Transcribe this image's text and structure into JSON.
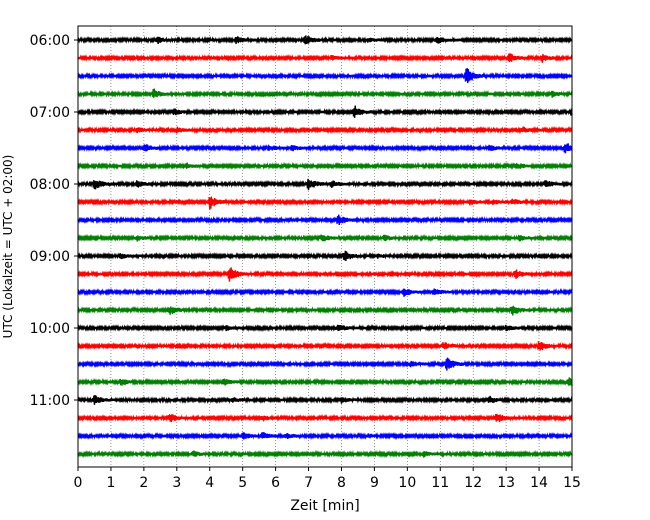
{
  "chart_data": {
    "type": "line",
    "title": "",
    "xlabel": "Zeit  [min]",
    "ylabel": "UTC (Lokalzeit = UTC + 02:00)",
    "xlim": [
      0,
      15
    ],
    "x_ticks": [
      0,
      1,
      2,
      3,
      4,
      5,
      6,
      7,
      8,
      9,
      10,
      11,
      12,
      13,
      14,
      15
    ],
    "x_grid": true,
    "y_ticks": [
      "06:00",
      "07:00",
      "08:00",
      "09:00",
      "10:00",
      "11:00"
    ],
    "trace_interval_min": 15,
    "trace_colors": [
      "#000000",
      "#ff0000",
      "#0000ff",
      "#008000"
    ],
    "series": [
      {
        "start": "06:00",
        "events": [
          [
            2.4,
            0.4
          ],
          [
            4.8,
            0.4
          ],
          [
            6.9,
            0.6
          ],
          [
            8.8,
            0.2
          ],
          [
            10.9,
            0.4
          ]
        ]
      },
      {
        "start": "06:15",
        "events": [
          [
            7.7,
            0.25
          ],
          [
            13.1,
            0.5
          ],
          [
            14.1,
            0.45
          ]
        ]
      },
      {
        "start": "06:30",
        "events": [
          [
            11.8,
            1.0
          ]
        ]
      },
      {
        "start": "06:45",
        "events": [
          [
            2.3,
            0.6
          ],
          [
            14.4,
            0.3
          ]
        ]
      },
      {
        "start": "07:00",
        "events": [
          [
            2.9,
            0.4
          ],
          [
            8.4,
            0.7
          ],
          [
            15.0,
            0.5
          ]
        ]
      },
      {
        "start": "07:15",
        "events": [
          [
            1.8,
            0.3
          ],
          [
            3.0,
            0.3
          ],
          [
            13.5,
            0.3
          ]
        ]
      },
      {
        "start": "07:30",
        "events": [
          [
            2.0,
            0.5
          ],
          [
            5.8,
            0.3
          ],
          [
            6.5,
            0.3
          ],
          [
            12.5,
            0.3
          ],
          [
            14.8,
            0.7
          ]
        ]
      },
      {
        "start": "07:45",
        "events": [
          [
            3.3,
            0.3
          ],
          [
            13.3,
            0.4
          ]
        ]
      },
      {
        "start": "08:00",
        "events": [
          [
            0.5,
            0.7
          ],
          [
            1.8,
            0.4
          ],
          [
            7.0,
            0.7
          ],
          [
            7.7,
            0.4
          ],
          [
            14.2,
            0.4
          ]
        ]
      },
      {
        "start": "08:15",
        "events": [
          [
            4.0,
            0.8
          ],
          [
            11.9,
            0.3
          ],
          [
            12.6,
            0.3
          ],
          [
            13.2,
            0.3
          ]
        ]
      },
      {
        "start": "08:30",
        "events": [
          [
            7.9,
            0.6
          ]
        ]
      },
      {
        "start": "08:45",
        "events": [
          [
            1.8,
            0.3
          ],
          [
            7.4,
            0.4
          ],
          [
            9.3,
            0.3
          ],
          [
            13.4,
            0.3
          ]
        ]
      },
      {
        "start": "09:00",
        "events": [
          [
            1.3,
            0.3
          ],
          [
            8.1,
            0.6
          ],
          [
            9.1,
            0.2
          ]
        ]
      },
      {
        "start": "09:15",
        "events": [
          [
            4.6,
            0.9
          ],
          [
            13.3,
            0.5
          ]
        ]
      },
      {
        "start": "09:30",
        "events": [
          [
            9.9,
            0.5
          ],
          [
            10.8,
            0.4
          ]
        ]
      },
      {
        "start": "09:45",
        "events": [
          [
            2.8,
            0.5
          ],
          [
            13.2,
            0.7
          ]
        ]
      },
      {
        "start": "10:00",
        "events": [
          [
            4.5,
            0.3
          ],
          [
            7.9,
            0.4
          ],
          [
            13.0,
            0.3
          ]
        ]
      },
      {
        "start": "10:15",
        "events": [
          [
            11.1,
            0.4
          ],
          [
            14.0,
            0.6
          ]
        ]
      },
      {
        "start": "10:30",
        "events": [
          [
            10.1,
            0.3
          ],
          [
            11.2,
            0.8
          ]
        ]
      },
      {
        "start": "10:45",
        "events": [
          [
            1.3,
            0.4
          ],
          [
            4.4,
            0.4
          ],
          [
            14.9,
            0.5
          ]
        ]
      },
      {
        "start": "11:00",
        "events": [
          [
            0.5,
            0.5
          ],
          [
            4.7,
            0.3
          ],
          [
            8.0,
            0.3
          ],
          [
            12.5,
            0.4
          ]
        ]
      },
      {
        "start": "11:15",
        "events": [
          [
            2.8,
            0.5
          ],
          [
            5.6,
            0.3
          ],
          [
            12.7,
            0.6
          ]
        ]
      },
      {
        "start": "11:30",
        "events": [
          [
            5.0,
            0.4
          ],
          [
            5.6,
            0.4
          ],
          [
            6.3,
            0.3
          ],
          [
            8.8,
            0.2
          ]
        ]
      },
      {
        "start": "11:45",
        "events": [
          [
            3.5,
            0.3
          ],
          [
            10.5,
            0.3
          ]
        ]
      }
    ]
  }
}
